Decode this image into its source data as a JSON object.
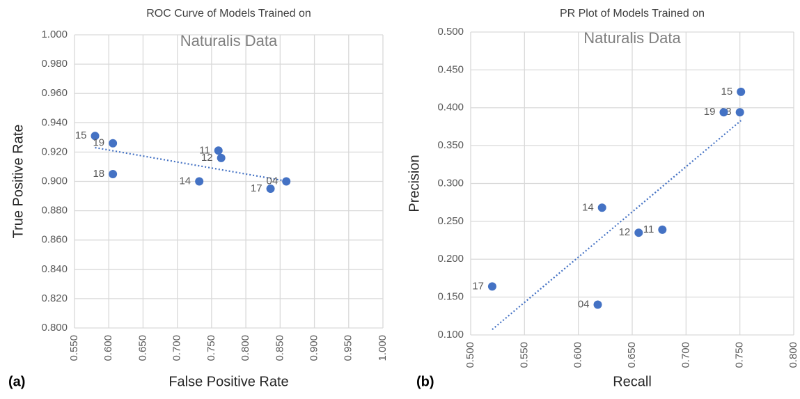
{
  "chart_data": [
    {
      "type": "scatter",
      "title": "ROC Curve of Models Trained on",
      "subtitle": "Naturalis Data",
      "panel_label": "(a)",
      "x_label": "False Positive Rate",
      "y_label": "True Positive Rate",
      "color": "#4472c4",
      "trendline": true,
      "grid": true,
      "labels": [
        "15",
        "19",
        "18",
        "11",
        "12",
        "14",
        "17",
        "04"
      ],
      "x": [
        0.58,
        0.606,
        0.606,
        0.76,
        0.764,
        0.732,
        0.836,
        0.859
      ],
      "values": [
        0.931,
        0.926,
        0.905,
        0.921,
        0.916,
        0.9,
        0.895,
        0.9
      ],
      "xlim": [
        0.55,
        1.0
      ],
      "xticks": [
        {
          "value": 0.55,
          "label": "0.550"
        },
        {
          "value": 0.6,
          "label": "0.600"
        },
        {
          "value": 0.65,
          "label": "0.650"
        },
        {
          "value": 0.7,
          "label": "0.700"
        },
        {
          "value": 0.75,
          "label": "0.750"
        },
        {
          "value": 0.8,
          "label": "0.800"
        },
        {
          "value": 0.85,
          "label": "0.850"
        },
        {
          "value": 0.9,
          "label": "0.900"
        },
        {
          "value": 0.95,
          "label": "0.950"
        },
        {
          "value": 1.0,
          "label": "1.000"
        }
      ],
      "ylim": [
        0.8,
        1.0
      ],
      "yticks": [
        {
          "value": 0.8,
          "label": "0.800"
        },
        {
          "value": 0.82,
          "label": "0.820"
        },
        {
          "value": 0.84,
          "label": "0.840"
        },
        {
          "value": 0.86,
          "label": "0.860"
        },
        {
          "value": 0.88,
          "label": "0.880"
        },
        {
          "value": 0.9,
          "label": "0.900"
        },
        {
          "value": 0.92,
          "label": "0.920"
        },
        {
          "value": 0.94,
          "label": "0.940"
        },
        {
          "value": 0.96,
          "label": "0.960"
        },
        {
          "value": 0.98,
          "label": "0.980"
        },
        {
          "value": 1.0,
          "label": "1.000"
        }
      ]
    },
    {
      "type": "scatter",
      "title": "PR Plot of Models Trained on",
      "subtitle": "Naturalis Data",
      "panel_label": "(b)",
      "x_label": "Recall",
      "y_label": "Precision",
      "color": "#4472c4",
      "trendline": true,
      "grid": true,
      "labels": [
        "15",
        "18",
        "19",
        "14",
        "11",
        "12",
        "17",
        "04"
      ],
      "x": [
        0.751,
        0.75,
        0.735,
        0.622,
        0.678,
        0.656,
        0.52,
        0.618
      ],
      "values": [
        0.421,
        0.394,
        0.394,
        0.268,
        0.239,
        0.235,
        0.164,
        0.14
      ],
      "xlim": [
        0.5,
        0.8
      ],
      "xticks": [
        {
          "value": 0.5,
          "label": "0.500"
        },
        {
          "value": 0.55,
          "label": "0.550"
        },
        {
          "value": 0.6,
          "label": "0.600"
        },
        {
          "value": 0.65,
          "label": "0.650"
        },
        {
          "value": 0.7,
          "label": "0.700"
        },
        {
          "value": 0.75,
          "label": "0.750"
        },
        {
          "value": 0.8,
          "label": "0.800"
        }
      ],
      "ylim": [
        0.1,
        0.5
      ],
      "yticks": [
        {
          "value": 0.1,
          "label": "0.100"
        },
        {
          "value": 0.15,
          "label": "0.150"
        },
        {
          "value": 0.2,
          "label": "0.200"
        },
        {
          "value": 0.25,
          "label": "0.250"
        },
        {
          "value": 0.3,
          "label": "0.300"
        },
        {
          "value": 0.35,
          "label": "0.350"
        },
        {
          "value": 0.4,
          "label": "0.400"
        },
        {
          "value": 0.45,
          "label": "0.450"
        },
        {
          "value": 0.5,
          "label": "0.500"
        }
      ]
    }
  ]
}
